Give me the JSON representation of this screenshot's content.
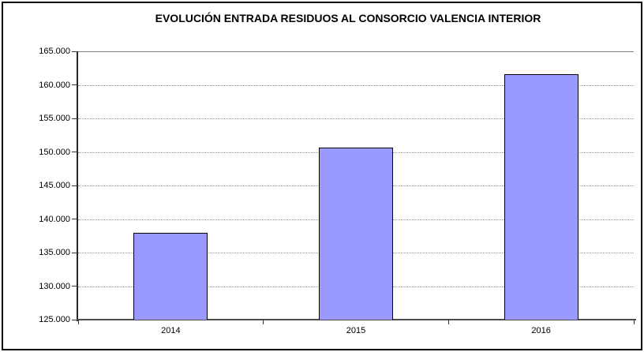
{
  "chart_data": {
    "type": "bar",
    "title": "EVOLUCIÓN ENTRADA RESIDUOS AL CONSORCIO VALENCIA INTERIOR",
    "categories": [
      "2014",
      "2015",
      "2016"
    ],
    "values": [
      137900,
      150700,
      161600
    ],
    "xlabel": "",
    "ylabel": "",
    "ylim": [
      125000,
      165000
    ],
    "ytick_step": 5000,
    "ytick_labels": [
      "125.000",
      "130.000",
      "135.000",
      "140.000",
      "145.000",
      "150.000",
      "155.000",
      "160.000",
      "165.000"
    ],
    "legend": "none",
    "grid": "horizontal-dotted",
    "colors": {
      "bar_fill": "#9999FF",
      "bar_border": "#000000",
      "gridline": "#949494",
      "top_gridline": "#808080",
      "axis": "#333333",
      "text": "#000000",
      "background": "#FFFFFF",
      "frame_border": "#000000"
    }
  }
}
